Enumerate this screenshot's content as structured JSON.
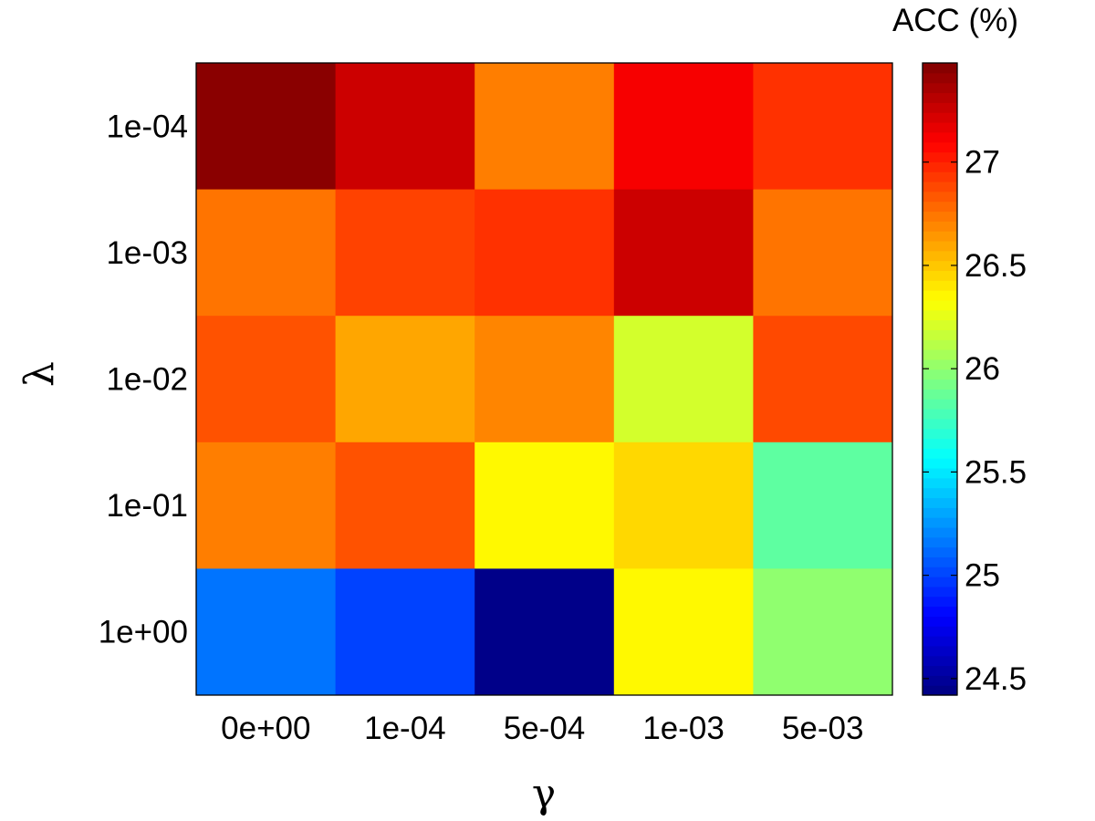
{
  "chart_data": {
    "type": "heatmap",
    "xlabel": "γ",
    "ylabel": "λ",
    "x_categories": [
      "0e+00",
      "1e-04",
      "5e-04",
      "1e-03",
      "5e-03"
    ],
    "y_categories": [
      "1e-04",
      "1e-03",
      "1e-02",
      "1e-01",
      "1e+00"
    ],
    "values": [
      [
        27.45,
        27.25,
        26.72,
        27.12,
        26.95
      ],
      [
        26.75,
        26.9,
        26.95,
        27.25,
        26.75
      ],
      [
        26.85,
        26.6,
        26.7,
        26.2,
        26.88
      ],
      [
        26.72,
        26.85,
        26.35,
        26.45,
        25.85
      ],
      [
        25.15,
        25.0,
        24.45,
        26.35,
        26.0
      ]
    ],
    "colorbar": {
      "title": "ACC (%)",
      "colormap": "jet",
      "range": [
        24.42,
        27.48
      ],
      "ticks": [
        24.5,
        25,
        25.5,
        26,
        26.5,
        27
      ],
      "tick_labels": [
        "24.5",
        "25",
        "25.5",
        "26",
        "26.5",
        "27"
      ]
    }
  }
}
